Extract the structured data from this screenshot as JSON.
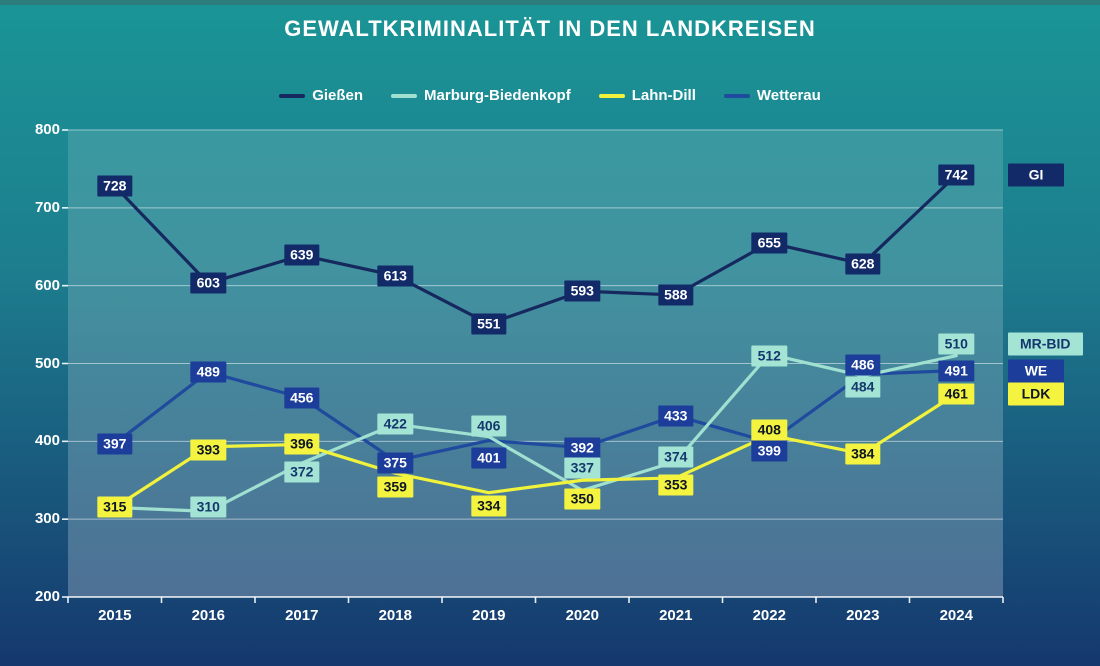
{
  "chart_data": {
    "type": "line",
    "title": "GEWALTKRIMINALITÄT IN DEN LANDKREISEN",
    "x": [
      "2015",
      "2016",
      "2017",
      "2018",
      "2019",
      "2020",
      "2021",
      "2022",
      "2023",
      "2024"
    ],
    "xlabel": "",
    "ylabel": "",
    "ylim": [
      200,
      800
    ],
    "y_ticks": [
      200,
      300,
      400,
      500,
      600,
      700,
      800
    ],
    "grid": true,
    "legend_position": "top",
    "draw_order": [
      3,
      1,
      2,
      0
    ],
    "series": [
      {
        "name": "Gießen",
        "tag": "GI",
        "color": "#16295f",
        "label_bg": "#122a68",
        "label_text": "#ffffff",
        "values": [
          728,
          603,
          639,
          613,
          551,
          593,
          588,
          655,
          628,
          742
        ],
        "label_dy": [
          0,
          0,
          0,
          0,
          0,
          0,
          0,
          0,
          0,
          0
        ]
      },
      {
        "name": "Marburg-Biedenkopf",
        "tag": "MR-BID",
        "color": "#9fe0d0",
        "label_bg": "#a4e4d4",
        "label_text": "#14386e",
        "values": [
          315,
          310,
          372,
          422,
          406,
          337,
          374,
          512,
          484,
          510
        ],
        "hidden_label_indices": [
          0
        ],
        "label_dy": [
          0,
          -4,
          9,
          0,
          -11,
          -22,
          -5,
          2,
          11,
          -12
        ]
      },
      {
        "name": "Lahn-Dill",
        "tag": "LDK",
        "color": "#f0f23c",
        "label_bg": "#f4f440",
        "label_text": "#0e1626",
        "values": [
          315,
          393,
          396,
          359,
          334,
          350,
          353,
          408,
          384,
          461
        ],
        "label_dy": [
          0,
          3,
          0,
          14,
          13,
          19,
          7,
          -5,
          0,
          0
        ]
      },
      {
        "name": "Wetterau",
        "tag": "WE",
        "color": "#1f4a9e",
        "label_bg": "#1c3d99",
        "label_text": "#ffffff",
        "values": [
          397,
          489,
          456,
          375,
          401,
          392,
          433,
          399,
          486,
          491
        ],
        "label_dy": [
          0,
          0,
          0,
          2,
          17,
          0,
          0,
          9,
          -9,
          0
        ]
      }
    ],
    "colors": {
      "background_top": "#1a9596",
      "background_bottom": "#15386e",
      "grid": "#ffffff",
      "axis_text": "#ffffff"
    }
  }
}
